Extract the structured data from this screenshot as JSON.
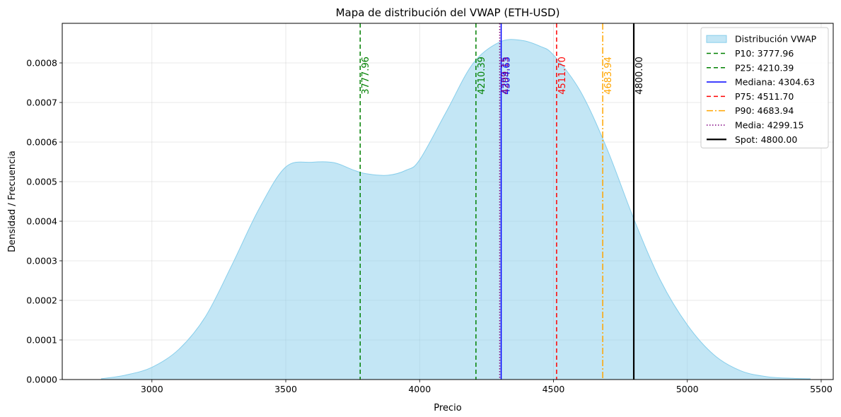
{
  "chart_data": {
    "type": "area",
    "title": "Mapa de distribución del VWAP (ETH-USD)",
    "xlabel": "Precio",
    "ylabel": "Densidad / Frecuencia",
    "xlim": [
      2665,
      5545
    ],
    "ylim": [
      0,
      0.0009
    ],
    "xticks": [
      3000,
      3500,
      4000,
      4500,
      5000,
      5500
    ],
    "yticks": [
      0,
      0.0001,
      0.0002,
      0.0003,
      0.0004,
      0.0005,
      0.0006,
      0.0007,
      0.0008
    ],
    "ytick_labels": [
      "0.0000",
      "0.0001",
      "0.0002",
      "0.0003",
      "0.0004",
      "0.0005",
      "0.0006",
      "0.0007",
      "0.0008"
    ],
    "grid": true,
    "legend_position": "top-right",
    "density": {
      "name": "Distribución VWAP",
      "color": "#87ceeb",
      "x": [
        2810,
        2900,
        3000,
        3100,
        3200,
        3300,
        3400,
        3500,
        3600,
        3680,
        3750,
        3800,
        3880,
        3950,
        4000,
        4100,
        4200,
        4300,
        4380,
        4450,
        4500,
        4600,
        4700,
        4800,
        4900,
        5000,
        5100,
        5200,
        5300,
        5400,
        5460
      ],
      "y": [
        2e-06,
        1.1e-05,
        3.1e-05,
        7.6e-05,
        0.000159,
        0.000291,
        0.000431,
        0.000537,
        0.000549,
        0.000548,
        0.00053,
        0.00052,
        0.000516,
        0.000529,
        0.000555,
        0.000677,
        0.000799,
        0.000853,
        0.000857,
        0.000842,
        0.00082,
        0.000729,
        0.000583,
        0.000406,
        0.00025,
        0.000138,
        6.2e-05,
        2.2e-05,
        7e-06,
        3e-06,
        2e-06
      ]
    },
    "markers": [
      {
        "name": "P10: 3777.96",
        "value": 3777.96,
        "label": "3777.96",
        "color": "#008000",
        "dash": "6,4",
        "width": 1.5
      },
      {
        "name": "P25: 4210.39",
        "value": 4210.39,
        "label": "4210.39",
        "color": "#008000",
        "dash": "6,4",
        "width": 1.5
      },
      {
        "name": "Mediana: 4304.63",
        "value": 4304.63,
        "label": "4304.63",
        "color": "#0000ff",
        "dash": "",
        "width": 1.5
      },
      {
        "name": "P75: 4511.70",
        "value": 4511.7,
        "label": "4511.70",
        "color": "#ff0000",
        "dash": "6,4",
        "width": 1.5
      },
      {
        "name": "P90: 4683.94",
        "value": 4683.94,
        "label": "4683.94",
        "color": "#ffa500",
        "dash": "9,3,2,3",
        "width": 1.5
      },
      {
        "name": "Media: 4299.15",
        "value": 4299.15,
        "label": "4299.15",
        "color": "#800080",
        "dash": "1.5,2.5",
        "width": 1.5
      },
      {
        "name": "Spot: 4800.00",
        "value": 4800.0,
        "label": "4800.00",
        "color": "#000000",
        "dash": "",
        "width": 2.2
      }
    ]
  }
}
